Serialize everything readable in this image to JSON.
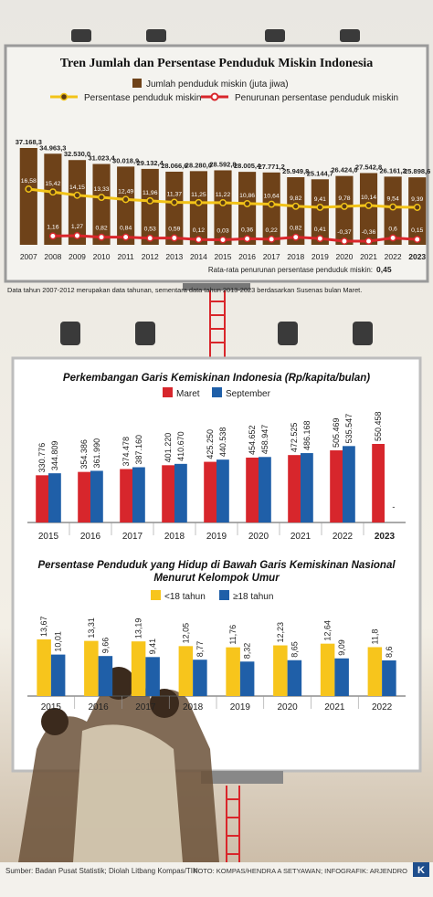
{
  "chart_data": [
    {
      "type": "combo",
      "title": "Tren Jumlah dan Persentase Penduduk Miskin Indonesia",
      "categories": [
        "2007",
        "2008",
        "2009",
        "2010",
        "2011",
        "2012",
        "2013",
        "2014",
        "2015",
        "2016",
        "2017",
        "2018",
        "2019",
        "2020",
        "2021",
        "2022",
        "2023"
      ],
      "series": [
        {
          "name": "Jumlah penduduk miskin (juta jiwa)",
          "type": "bar",
          "color": "#6e4219",
          "values": [
            37168.3,
            34963.3,
            32530.0,
            31023.4,
            30018.9,
            29132.4,
            28066.6,
            28280.0,
            28592.8,
            28005.4,
            27771.2,
            25949.8,
            25144.7,
            26424.0,
            27542.8,
            26161.2,
            25898.6
          ],
          "value_labels": [
            "37.168,3",
            "34.963,3",
            "32.530,0",
            "31.023,4",
            "30.018,9",
            "29.132,4",
            "28.066,6",
            "28.280,0",
            "28.592,8",
            "28.005,4",
            "27.771,2",
            "25.949,8",
            "25.144,7",
            "26.424,0",
            "27.542,8",
            "26.161,2",
            "25.898,6"
          ]
        },
        {
          "name": "Persentase penduduk miskin",
          "type": "line",
          "color": "#f2c318",
          "values": [
            16.58,
            15.42,
            14.15,
            13.33,
            12.49,
            11.96,
            11.37,
            11.25,
            11.22,
            10.86,
            10.64,
            9.82,
            9.41,
            9.78,
            10.14,
            9.54,
            9.39
          ],
          "value_labels": [
            "16,58",
            "15,42",
            "14,15",
            "13,33",
            "12,49",
            "11,96",
            "11,37",
            "11,25",
            "11,22",
            "10,86",
            "10,64",
            "9,82",
            "9,41",
            "9,78",
            "10,14",
            "9,54",
            "9,39"
          ]
        },
        {
          "name": "Penurunan persentase penduduk miskin",
          "type": "line",
          "color": "#d9262b",
          "values": [
            null,
            1.16,
            1.27,
            0.82,
            0.84,
            0.53,
            0.59,
            0.12,
            0.03,
            0.36,
            0.22,
            0.82,
            0.41,
            -0.37,
            -0.36,
            0.6,
            0.15
          ],
          "value_labels": [
            null,
            "1,16",
            "1,27",
            "0,82",
            "0,84",
            "0,53",
            "0,59",
            "0,12",
            "0,03",
            "0,36",
            "0,22",
            "0,82",
            "0,41",
            "-0,37",
            "-0,36",
            "0,6",
            "0,15"
          ]
        }
      ],
      "annotation": "Rata-rata penurunan persentase penduduk miskin:",
      "annotation_value": "0,45",
      "note": "Data tahun 2007-2012 merupakan data tahunan, sementara data tahun 2013-2023 berdasarkan Susenas bulan Maret."
    },
    {
      "type": "bar",
      "title": "Perkembangan Garis Kemiskinan Indonesia (Rp/kapita/bulan)",
      "categories": [
        "2015",
        "2016",
        "2017",
        "2018",
        "2019",
        "2020",
        "2021",
        "2022",
        "2023"
      ],
      "series": [
        {
          "name": "Maret",
          "color": "#d7262c",
          "values": [
            330776,
            354386,
            374478,
            401220,
            425250,
            454652,
            472525,
            505469,
            550458
          ],
          "value_labels": [
            "330.776",
            "354.386",
            "374.478",
            "401.220",
            "425.250",
            "454.652",
            "472.525",
            "505.469",
            "550.458"
          ]
        },
        {
          "name": "September",
          "color": "#1f5fa8",
          "values": [
            344809,
            361990,
            387160,
            410670,
            440538,
            458947,
            486168,
            535547,
            null
          ],
          "value_labels": [
            "344.809",
            "361.990",
            "387.160",
            "410.670",
            "440.538",
            "458.947",
            "486.168",
            "535.547",
            "-"
          ]
        }
      ]
    },
    {
      "type": "bar",
      "title": "Persentase Penduduk yang Hidup di Bawah Garis Kemiskinan Nasional Menurut Kelompok Umur",
      "categories": [
        "2015",
        "2016",
        "2017",
        "2018",
        "2019",
        "2020",
        "2021",
        "2022"
      ],
      "series": [
        {
          "name": "<18 tahun",
          "color": "#f7c51c",
          "values": [
            13.67,
            13.31,
            13.19,
            12.05,
            11.76,
            12.23,
            12.64,
            11.8
          ],
          "value_labels": [
            "13,67",
            "13,31",
            "13,19",
            "12,05",
            "11,76",
            "12,23",
            "12,64",
            "11,8"
          ]
        },
        {
          "name": "≥18 tahun",
          "color": "#1f5fa8",
          "values": [
            10.01,
            9.66,
            9.41,
            8.77,
            8.32,
            8.65,
            9.09,
            8.6
          ],
          "value_labels": [
            "10,01",
            "9,66",
            "9,41",
            "8,77",
            "8,32",
            "8,65",
            "9,09",
            "8,6"
          ]
        }
      ]
    }
  ],
  "source": "Sumber: Badan Pusat Statistik; Diolah Litbang Kompas/TIN",
  "credit": "FOTO: KOMPAS/HENDRA A SETYAWAN; INFOGRAFIK: ARJENDRO",
  "logo": "K"
}
